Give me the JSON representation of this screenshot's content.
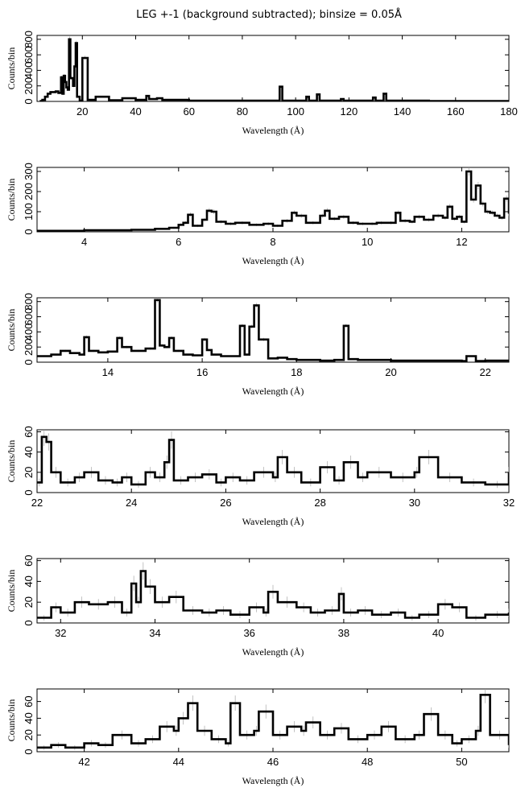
{
  "title": "LEG +-1 (background subtracted); binsize = 0.05Å",
  "chart_data": [
    {
      "type": "line",
      "xlabel": "Wavelength (Å)",
      "ylabel": "Counts/bin",
      "xlim": [
        3,
        180
      ],
      "ylim": [
        0,
        850
      ],
      "xticks": [
        "20",
        "40",
        "60",
        "80",
        "100",
        "120",
        "140",
        "160",
        "180"
      ],
      "yticks": [
        "0",
        "200",
        "400",
        "600",
        "800"
      ],
      "grid": false,
      "series": [
        {
          "x": [
            4,
            5,
            6,
            7,
            8,
            9,
            10,
            11,
            12,
            12.5,
            13,
            13.5,
            14,
            14.5,
            15,
            15.5,
            16,
            16.5,
            17,
            17.5,
            18,
            19,
            20,
            22,
            25,
            30,
            35,
            40,
            44,
            45,
            48,
            50,
            55,
            60,
            70,
            80,
            90,
            94,
            95,
            100,
            104,
            105,
            108,
            109,
            110,
            117,
            118,
            120,
            129,
            130,
            133,
            134,
            136,
            140,
            150,
            160,
            170,
            180
          ],
          "y": [
            5,
            20,
            60,
            100,
            120,
            120,
            130,
            110,
            310,
            100,
            330,
            250,
            180,
            150,
            800,
            300,
            300,
            200,
            450,
            750,
            60,
            10,
            560,
            20,
            60,
            15,
            40,
            20,
            70,
            30,
            40,
            20,
            20,
            10,
            10,
            10,
            10,
            190,
            10,
            10,
            60,
            10,
            90,
            10,
            10,
            30,
            10,
            10,
            50,
            10,
            100,
            10,
            10,
            10,
            5,
            5,
            5,
            5
          ]
        }
      ]
    },
    {
      "type": "line",
      "xlabel": "Wavelength (Å)",
      "ylabel": "Counts/bin",
      "xlim": [
        3,
        13
      ],
      "ylim": [
        0,
        320
      ],
      "xticks": [
        "4",
        "6",
        "8",
        "10",
        "12"
      ],
      "yticks": [
        "0",
        "100",
        "200",
        "300"
      ],
      "grid": false,
      "series": [
        {
          "x": [
            3,
            3.5,
            4,
            4.5,
            5,
            5.5,
            5.8,
            6,
            6.1,
            6.2,
            6.3,
            6.5,
            6.6,
            6.7,
            6.8,
            7,
            7.2,
            7.5,
            7.8,
            8,
            8.2,
            8.4,
            8.5,
            8.7,
            9,
            9.1,
            9.2,
            9.4,
            9.6,
            9.8,
            10,
            10.2,
            10.4,
            10.6,
            10.7,
            10.9,
            11,
            11.2,
            11.4,
            11.6,
            11.7,
            11.8,
            11.9,
            12,
            12.1,
            12.2,
            12.3,
            12.4,
            12.5,
            12.6,
            12.7,
            12.8,
            12.9,
            13
          ],
          "y": [
            5,
            5,
            8,
            8,
            10,
            15,
            20,
            35,
            45,
            85,
            30,
            60,
            105,
            100,
            50,
            40,
            45,
            35,
            40,
            30,
            55,
            95,
            80,
            45,
            80,
            105,
            65,
            75,
            45,
            40,
            40,
            45,
            45,
            95,
            55,
            50,
            75,
            60,
            80,
            70,
            125,
            65,
            75,
            50,
            300,
            160,
            230,
            140,
            100,
            95,
            80,
            70,
            165,
            90
          ]
        }
      ]
    },
    {
      "type": "line",
      "xlabel": "Wavelength (Å)",
      "ylabel": "Counts/bin",
      "xlim": [
        12.5,
        22.5
      ],
      "ylim": [
        0,
        850
      ],
      "xticks": [
        "14",
        "16",
        "18",
        "20",
        "22"
      ],
      "yticks": [
        "0",
        "200",
        "400",
        "600",
        "800"
      ],
      "grid": false,
      "series": [
        {
          "x": [
            12.5,
            12.8,
            13,
            13.2,
            13.4,
            13.5,
            13.6,
            13.8,
            14,
            14.2,
            14.3,
            14.5,
            14.8,
            15,
            15.1,
            15.2,
            15.3,
            15.4,
            15.6,
            15.8,
            16,
            16.1,
            16.2,
            16.4,
            16.6,
            16.8,
            16.9,
            17,
            17.1,
            17.2,
            17.4,
            17.6,
            17.8,
            18,
            18.5,
            18.8,
            19,
            19.1,
            19.3,
            20,
            20.5,
            21,
            21.5,
            21.6,
            21.8,
            22,
            22.5
          ],
          "y": [
            80,
            100,
            150,
            120,
            100,
            330,
            150,
            130,
            140,
            320,
            200,
            150,
            180,
            820,
            220,
            200,
            320,
            150,
            100,
            90,
            300,
            160,
            100,
            80,
            80,
            480,
            100,
            470,
            750,
            300,
            50,
            60,
            40,
            30,
            20,
            30,
            480,
            40,
            30,
            20,
            20,
            20,
            15,
            80,
            15,
            20,
            20
          ]
        }
      ]
    },
    {
      "type": "line",
      "xlabel": "Wavelength (Å)",
      "ylabel": "Counts/bin",
      "xlim": [
        22,
        32
      ],
      "ylim": [
        0,
        62
      ],
      "xticks": [
        "22",
        "24",
        "26",
        "28",
        "30",
        "32"
      ],
      "yticks": [
        "0",
        "20",
        "40",
        "60"
      ],
      "grid": false,
      "series": [
        {
          "x": [
            22,
            22.1,
            22.2,
            22.3,
            22.5,
            22.8,
            23,
            23.3,
            23.6,
            23.8,
            24,
            24.3,
            24.5,
            24.7,
            24.8,
            24.9,
            25.2,
            25.5,
            25.8,
            26,
            26.3,
            26.6,
            27,
            27.1,
            27.3,
            27.6,
            28,
            28.3,
            28.5,
            28.8,
            29,
            29.5,
            30,
            30.1,
            30.5,
            31,
            31.5,
            32
          ],
          "y": [
            10,
            55,
            50,
            20,
            10,
            15,
            20,
            12,
            10,
            15,
            8,
            20,
            15,
            30,
            52,
            12,
            15,
            18,
            10,
            15,
            12,
            20,
            15,
            35,
            20,
            10,
            25,
            12,
            30,
            15,
            20,
            15,
            20,
            35,
            15,
            10,
            8,
            20
          ]
        }
      ]
    },
    {
      "type": "line",
      "xlabel": "Wavelength (Å)",
      "ylabel": "Counts/bin",
      "xlim": [
        31.5,
        41.5
      ],
      "ylim": [
        0,
        62
      ],
      "xticks": [
        "32",
        "34",
        "36",
        "38",
        "40"
      ],
      "yticks": [
        "0",
        "20",
        "40",
        "60"
      ],
      "grid": false,
      "series": [
        {
          "x": [
            31.5,
            31.8,
            32,
            32.3,
            32.6,
            33,
            33.3,
            33.5,
            33.6,
            33.7,
            33.8,
            34,
            34.3,
            34.6,
            35,
            35.3,
            35.6,
            36,
            36.3,
            36.4,
            36.6,
            37,
            37.3,
            37.6,
            37.9,
            38,
            38.3,
            38.6,
            39,
            39.3,
            39.6,
            40,
            40.3,
            40.6,
            41,
            41.5
          ],
          "y": [
            5,
            15,
            10,
            20,
            18,
            20,
            10,
            38,
            20,
            50,
            35,
            20,
            25,
            12,
            10,
            12,
            8,
            15,
            10,
            30,
            20,
            15,
            10,
            12,
            28,
            10,
            12,
            8,
            10,
            5,
            8,
            18,
            15,
            5,
            8,
            10
          ]
        }
      ]
    },
    {
      "type": "line",
      "xlabel": "Wavelength (Å)",
      "ylabel": "Counts/bin",
      "xlim": [
        41,
        51
      ],
      "ylim": [
        0,
        75
      ],
      "xticks": [
        "42",
        "44",
        "46",
        "48",
        "50"
      ],
      "yticks": [
        "0",
        "20",
        "40",
        "60"
      ],
      "grid": false,
      "series": [
        {
          "x": [
            41,
            41.3,
            41.6,
            42,
            42.3,
            42.6,
            43,
            43.3,
            43.6,
            43.9,
            44,
            44.2,
            44.4,
            44.7,
            45,
            45.1,
            45.3,
            45.6,
            45.7,
            46,
            46.3,
            46.6,
            46.7,
            47,
            47.3,
            47.6,
            48,
            48.3,
            48.6,
            49,
            49.2,
            49.5,
            49.8,
            50,
            50.3,
            50.4,
            50.6,
            51
          ],
          "y": [
            5,
            8,
            5,
            10,
            8,
            20,
            10,
            15,
            30,
            25,
            40,
            58,
            25,
            15,
            10,
            58,
            20,
            25,
            48,
            20,
            30,
            25,
            35,
            20,
            28,
            15,
            20,
            30,
            15,
            20,
            45,
            20,
            10,
            15,
            25,
            68,
            20,
            8
          ]
        }
      ]
    }
  ]
}
